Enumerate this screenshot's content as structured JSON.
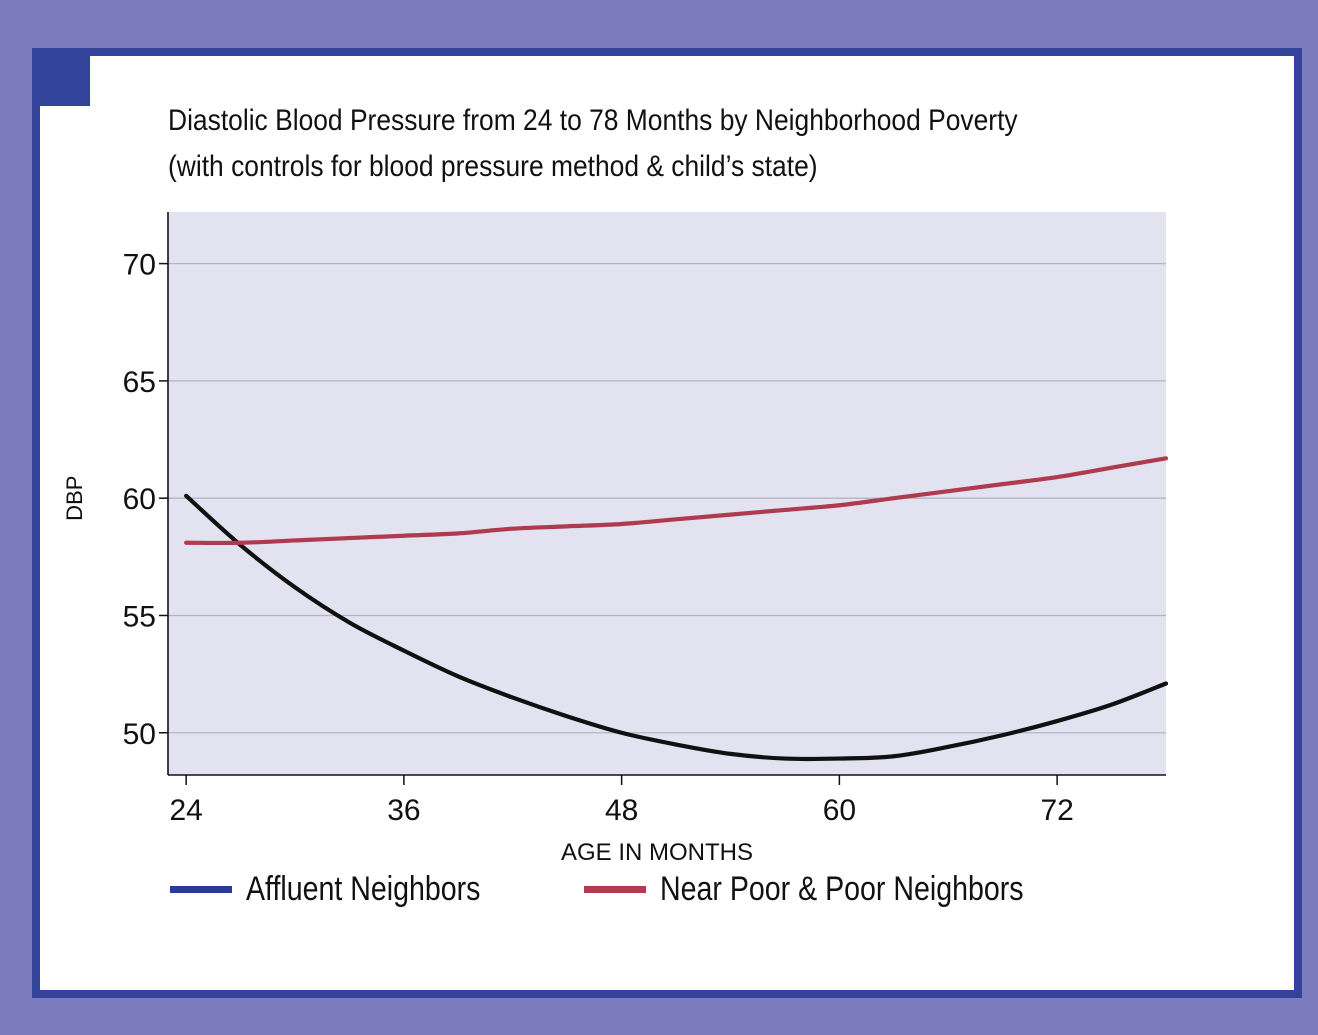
{
  "colors": {
    "background": "#7b7bbd",
    "frame_border": "#33429a",
    "plot_bg": "#e2e2f0",
    "grid": "#b4b4c4",
    "affluent_line": "#111111",
    "poor_line": "#b03a4e",
    "affluent_legend": "#2a3b95",
    "poor_legend": "#b03a4e"
  },
  "chart_data": {
    "type": "line",
    "title": "Diastolic Blood Pressure from 24 to 78 Months by Neighborhood Poverty",
    "subtitle": "(with controls for blood pressure method & child’s state)",
    "xlabel": "AGE IN MONTHS",
    "ylabel": "DBP",
    "xlim": [
      23,
      78
    ],
    "ylim": [
      48.2,
      72.2
    ],
    "xticks": [
      24,
      36,
      48,
      60,
      72
    ],
    "yticks": [
      50,
      55,
      60,
      65,
      70
    ],
    "grid": true,
    "legend_position": "bottom",
    "series": [
      {
        "name": "Affluent Neighbors",
        "x": [
          24,
          27,
          30,
          33,
          36,
          39,
          42,
          45,
          48,
          51,
          54,
          57,
          60,
          63,
          66,
          69,
          72,
          75,
          78
        ],
        "y": [
          60.1,
          58.0,
          56.2,
          54.7,
          53.5,
          52.4,
          51.5,
          50.7,
          50.0,
          49.5,
          49.1,
          48.9,
          48.9,
          49.0,
          49.4,
          49.9,
          50.5,
          51.2,
          52.1
        ]
      },
      {
        "name": "Near Poor & Poor Neighbors",
        "x": [
          24,
          27,
          30,
          33,
          36,
          39,
          42,
          45,
          48,
          51,
          54,
          57,
          60,
          63,
          66,
          69,
          72,
          75,
          78
        ],
        "y": [
          58.1,
          58.1,
          58.2,
          58.3,
          58.4,
          58.5,
          58.7,
          58.8,
          58.9,
          59.1,
          59.3,
          59.5,
          59.7,
          60.0,
          60.3,
          60.6,
          60.9,
          61.3,
          61.7
        ]
      }
    ]
  }
}
